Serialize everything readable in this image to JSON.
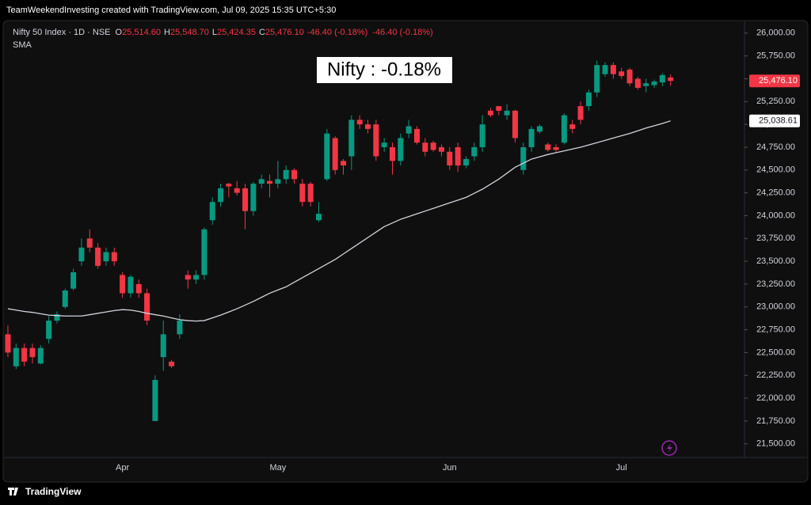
{
  "chart_data": {
    "type": "candlestick",
    "header": "TeamWeekendInvesting created with TradingView.com, Jul 09, 2025 15:35 UTC+5:30",
    "symbol": "Nifty 50 Index · 1D · NSE",
    "legend_keys": [
      "O",
      "H",
      "L",
      "C"
    ],
    "legend_values": [
      "25,514.60",
      "25,548.70",
      "25,424.35",
      "25,476.10"
    ],
    "legend_changes": [
      "-46.40 (-0.18%)",
      "-46.40 (-0.18%)"
    ],
    "annotation": "Nifty : -0.18%",
    "footer": "TradingView",
    "up_color": "#089981",
    "down_color": "#f23645",
    "categories": [
      null,
      null,
      null,
      null,
      null,
      null,
      null,
      null,
      null,
      null,
      null,
      null,
      null,
      null,
      "Apr",
      null,
      null,
      null,
      null,
      null,
      null,
      null,
      null,
      null,
      null,
      null,
      null,
      null,
      null,
      null,
      null,
      null,
      null,
      "May",
      null,
      null,
      null,
      null,
      null,
      null,
      null,
      null,
      null,
      null,
      null,
      null,
      null,
      null,
      null,
      null,
      null,
      null,
      null,
      null,
      "Jun",
      null,
      null,
      null,
      null,
      null,
      null,
      null,
      null,
      null,
      null,
      null,
      null,
      null,
      null,
      null,
      null,
      null,
      null,
      null,
      null,
      "Jul",
      null,
      null,
      null,
      null,
      null,
      null
    ],
    "candles": {
      "open": [
        22700,
        22350,
        22550,
        22550,
        22380,
        22650,
        22850,
        23000,
        23200,
        23500,
        23750,
        23650,
        23500,
        23600,
        23350,
        23150,
        23250,
        23150,
        21750,
        22450,
        22400,
        22700,
        23350,
        23300,
        23350,
        23950,
        24150,
        24350,
        24300,
        24300,
        24050,
        24350,
        24380,
        24350,
        24400,
        24500,
        24350,
        24350,
        23950,
        24400,
        24850,
        24600,
        24650,
        25050,
        25000,
        25000,
        24750,
        24750,
        24600,
        24900,
        24950,
        24800,
        24800,
        24750,
        24700,
        24750,
        24550,
        24650,
        24750,
        25150,
        25200,
        25100,
        25150,
        24500,
        24750,
        24920,
        24780,
        24750,
        24800,
        25000,
        25200,
        25200,
        25350,
        25550,
        25650,
        25580,
        25600,
        25500,
        25420,
        25430,
        25460,
        25514.6
      ],
      "high": [
        22800,
        22600,
        22600,
        22600,
        22580,
        22900,
        22950,
        23200,
        23420,
        23750,
        23850,
        23700,
        23650,
        23650,
        23380,
        23350,
        23300,
        23200,
        22250,
        22850,
        22420,
        22920,
        23400,
        23400,
        23870,
        24200,
        24350,
        24360,
        24380,
        24350,
        24370,
        24450,
        24450,
        24600,
        24550,
        24520,
        24400,
        24370,
        24150,
        24950,
        24870,
        24620,
        25100,
        25100,
        25050,
        25050,
        24850,
        24800,
        24900,
        25050,
        24980,
        24850,
        24820,
        24780,
        24750,
        24800,
        24650,
        24800,
        25100,
        25180,
        25200,
        25220,
        25160,
        24800,
        24980,
        25000,
        24800,
        24780,
        25120,
        25050,
        25250,
        25380,
        25700,
        25680,
        25680,
        25620,
        25620,
        25520,
        25500,
        25490,
        25560,
        25548.7
      ],
      "low": [
        22450,
        22320,
        22350,
        22380,
        22370,
        22600,
        22820,
        22980,
        23180,
        23450,
        23600,
        23420,
        23450,
        23450,
        23100,
        23100,
        23100,
        22800,
        21750,
        22300,
        22330,
        22650,
        23200,
        23250,
        23300,
        23900,
        24100,
        24200,
        24220,
        23850,
        24000,
        24300,
        24200,
        24300,
        24350,
        24350,
        24100,
        24100,
        23930,
        24380,
        24450,
        24450,
        24500,
        24950,
        24900,
        24600,
        24700,
        24450,
        24550,
        24850,
        24780,
        24650,
        24700,
        24650,
        24500,
        24480,
        24520,
        24600,
        24700,
        25080,
        25100,
        25050,
        24800,
        24450,
        24700,
        24900,
        24700,
        24700,
        24780,
        24900,
        25000,
        25150,
        25300,
        25520,
        25500,
        25500,
        25420,
        25380,
        25350,
        25400,
        25420,
        25424.35
      ],
      "close": [
        22500,
        22550,
        22400,
        22450,
        22550,
        22850,
        22920,
        23180,
        23380,
        23650,
        23650,
        23450,
        23600,
        23500,
        23150,
        23330,
        23150,
        22850,
        22200,
        22700,
        22350,
        22850,
        23300,
        23350,
        23850,
        24150,
        24300,
        24320,
        24250,
        24050,
        24350,
        24400,
        24350,
        24400,
        24500,
        24400,
        24150,
        24150,
        24020,
        24900,
        24500,
        24550,
        25050,
        25000,
        24950,
        24650,
        24800,
        24600,
        24850,
        24980,
        24800,
        24700,
        24720,
        24700,
        24550,
        24550,
        24620,
        24750,
        25000,
        25100,
        25150,
        25150,
        24850,
        24750,
        24950,
        24980,
        24720,
        24720,
        25100,
        24950,
        25050,
        25350,
        25650,
        25650,
        25550,
        25530,
        25450,
        25400,
        25450,
        25470,
        25540,
        25476.1
      ]
    },
    "sma": {
      "name": "SMA",
      "color": "#d1d4dc",
      "values": [
        22980,
        22965,
        22950,
        22940,
        22925,
        22910,
        22905,
        22900,
        22900,
        22900,
        22915,
        22930,
        22945,
        22960,
        22970,
        22965,
        22950,
        22930,
        22915,
        22900,
        22880,
        22860,
        22850,
        22845,
        22850,
        22880,
        22910,
        22945,
        22980,
        23020,
        23060,
        23105,
        23150,
        23185,
        23220,
        23270,
        23320,
        23370,
        23420,
        23470,
        23520,
        23580,
        23640,
        23700,
        23760,
        23820,
        23880,
        23920,
        23960,
        23990,
        24020,
        24050,
        24080,
        24110,
        24140,
        24170,
        24200,
        24245,
        24290,
        24345,
        24400,
        24465,
        24530,
        24575,
        24620,
        24645,
        24670,
        24690,
        24710,
        24730,
        24750,
        24775,
        24800,
        24825,
        24850,
        24875,
        24900,
        24930,
        24960,
        24985,
        25010,
        25038.61
      ]
    },
    "price_tags": [
      {
        "value": 25476.1,
        "label": "25,476.10",
        "color": "#f23645",
        "text_color": "#ffffff"
      },
      {
        "value": 25038.61,
        "label": "25,038.61",
        "color": "#ffffff",
        "text_color": "#131722"
      }
    ],
    "ylim": [
      21350,
      26120
    ],
    "yticks": [
      {
        "value": 21500,
        "label": "21,500.00"
      },
      {
        "value": 21750,
        "label": "21,750.00"
      },
      {
        "value": 22000,
        "label": "22,000.00"
      },
      {
        "value": 22250,
        "label": "22,250.00"
      },
      {
        "value": 22500,
        "label": "22,500.00"
      },
      {
        "value": 22750,
        "label": "22,750.00"
      },
      {
        "value": 23000,
        "label": "23,000.00"
      },
      {
        "value": 23250,
        "label": "23,250.00"
      },
      {
        "value": 23500,
        "label": "23,500.00"
      },
      {
        "value": 23750,
        "label": "23,750.00"
      },
      {
        "value": 24000,
        "label": "24,000.00"
      },
      {
        "value": 24250,
        "label": "24,250.00"
      },
      {
        "value": 24500,
        "label": "24,500.00"
      },
      {
        "value": 24750,
        "label": "24,750.00"
      },
      {
        "value": 25000,
        "label": "25,000.00"
      },
      {
        "value": 25250,
        "label": "25,250.00"
      },
      {
        "value": 25500,
        "label": "25,500.00"
      },
      {
        "value": 25750,
        "label": "25,750.00"
      },
      {
        "value": 26000,
        "label": "26,000.00"
      }
    ],
    "grid": false
  }
}
